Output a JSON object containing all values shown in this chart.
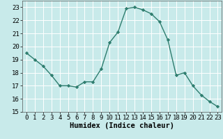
{
  "x": [
    0,
    1,
    2,
    3,
    4,
    5,
    6,
    7,
    8,
    9,
    10,
    11,
    12,
    13,
    14,
    15,
    16,
    17,
    18,
    19,
    20,
    21,
    22,
    23
  ],
  "y": [
    19.5,
    19.0,
    18.5,
    17.8,
    17.0,
    17.0,
    16.9,
    17.3,
    17.3,
    18.3,
    20.3,
    21.1,
    22.9,
    23.0,
    22.8,
    22.5,
    21.9,
    20.5,
    17.8,
    18.0,
    17.0,
    16.3,
    15.8,
    15.4
  ],
  "line_color": "#2e7d6e",
  "bg_color": "#c8eaea",
  "grid_color": "#ffffff",
  "xlabel": "Humidex (Indice chaleur)",
  "xlim": [
    -0.5,
    23.5
  ],
  "ylim": [
    15,
    23.5
  ],
  "yticks": [
    15,
    16,
    17,
    18,
    19,
    20,
    21,
    22,
    23
  ],
  "xticks": [
    0,
    1,
    2,
    3,
    4,
    5,
    6,
    7,
    8,
    9,
    10,
    11,
    12,
    13,
    14,
    15,
    16,
    17,
    18,
    19,
    20,
    21,
    22,
    23
  ],
  "label_fontsize": 7.5,
  "tick_fontsize": 6.5
}
